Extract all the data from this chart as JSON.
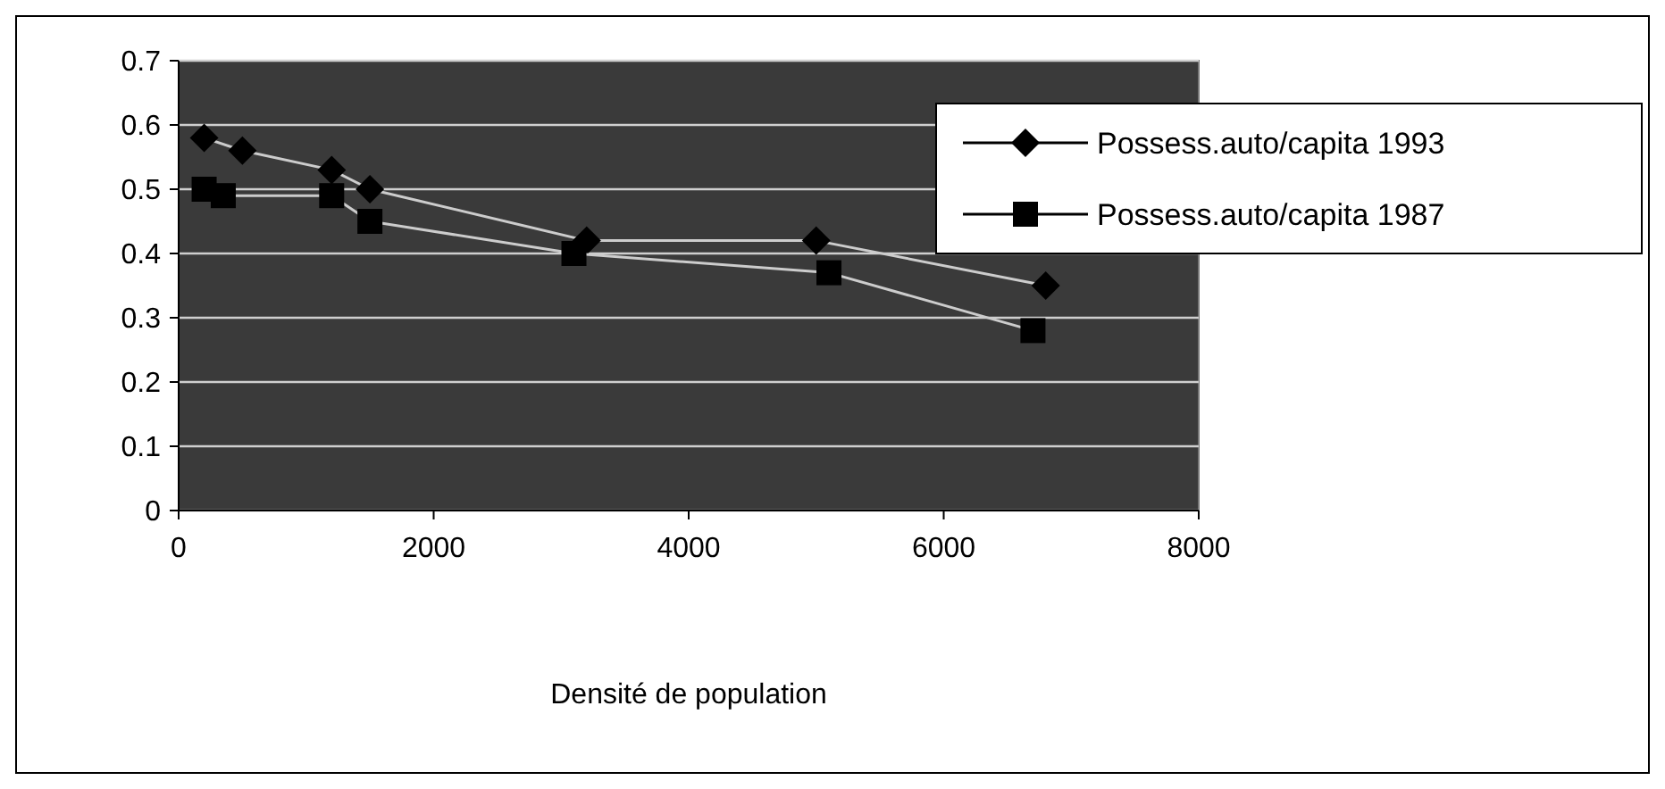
{
  "chart_data": {
    "type": "line",
    "xlabel": "Densité de population",
    "xlim": [
      0,
      8000
    ],
    "xticks": [
      0,
      2000,
      4000,
      6000,
      8000
    ],
    "ylim": [
      0,
      0.7
    ],
    "yticks": [
      0,
      0.1,
      0.2,
      0.3,
      0.4,
      0.5,
      0.6,
      0.7
    ],
    "grid": "y",
    "legend": "top right",
    "series": [
      {
        "name": "Possess.auto/capita 1993",
        "color": "#000000",
        "marker": "diamond",
        "x": [
          200,
          500,
          1200,
          1500,
          3200,
          5000,
          6800
        ],
        "values": [
          0.58,
          0.56,
          0.53,
          0.5,
          0.42,
          0.42,
          0.35
        ]
      },
      {
        "name": "Possess.auto/capita 1987",
        "color": "#000000",
        "marker": "square",
        "x": [
          200,
          350,
          1200,
          1500,
          3100,
          5100,
          6700
        ],
        "values": [
          0.5,
          0.49,
          0.49,
          0.45,
          0.4,
          0.37,
          0.28
        ]
      }
    ]
  }
}
